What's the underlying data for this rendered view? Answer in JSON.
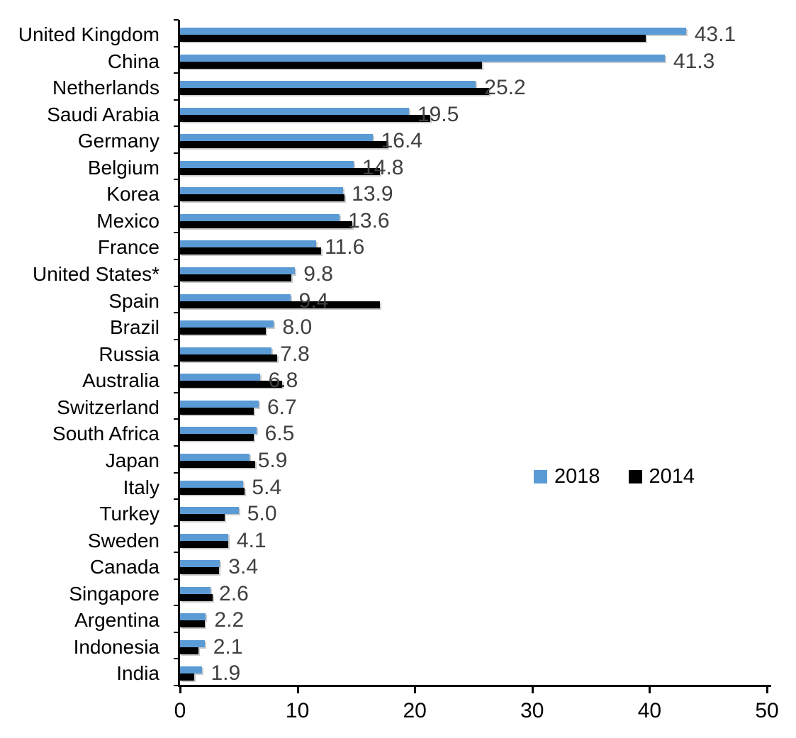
{
  "chart_data": {
    "type": "bar",
    "orientation": "horizontal",
    "title": "",
    "xlabel": "",
    "ylabel": "",
    "xlim": [
      0,
      50
    ],
    "x_ticks": [
      0,
      10,
      20,
      30,
      40,
      50
    ],
    "grid": false,
    "legend_position": "middle-right",
    "categories": [
      "United Kingdom",
      "China",
      "Netherlands",
      "Saudi Arabia",
      "Germany",
      "Belgium",
      "Korea",
      "Mexico",
      "France",
      "United States*",
      "Spain",
      "Brazil",
      "Russia",
      "Australia",
      "Switzerland",
      "South Africa",
      "Japan",
      "Italy",
      "Turkey",
      "Sweden",
      "Canada",
      "Singapore",
      "Argentina",
      "Indonesia",
      "India"
    ],
    "series": [
      {
        "name": "2018",
        "color": "#5B9BD5",
        "data_labels": true,
        "values": [
          43.1,
          41.3,
          25.2,
          19.5,
          16.4,
          14.8,
          13.9,
          13.6,
          11.6,
          9.8,
          9.4,
          8.0,
          7.8,
          6.8,
          6.7,
          6.5,
          5.9,
          5.4,
          5.0,
          4.1,
          3.4,
          2.6,
          2.2,
          2.1,
          1.9
        ]
      },
      {
        "name": "2014",
        "color": "#000000",
        "data_labels": false,
        "values": [
          39.7,
          25.7,
          26.3,
          21.3,
          17.7,
          17.0,
          14.0,
          14.7,
          12.0,
          9.5,
          17.0,
          7.3,
          8.3,
          8.7,
          6.3,
          6.3,
          6.4,
          5.5,
          3.8,
          4.1,
          3.3,
          2.8,
          2.1,
          1.6,
          1.2
        ]
      }
    ],
    "data_label_color": "#404040",
    "axis_color": "#000000"
  }
}
